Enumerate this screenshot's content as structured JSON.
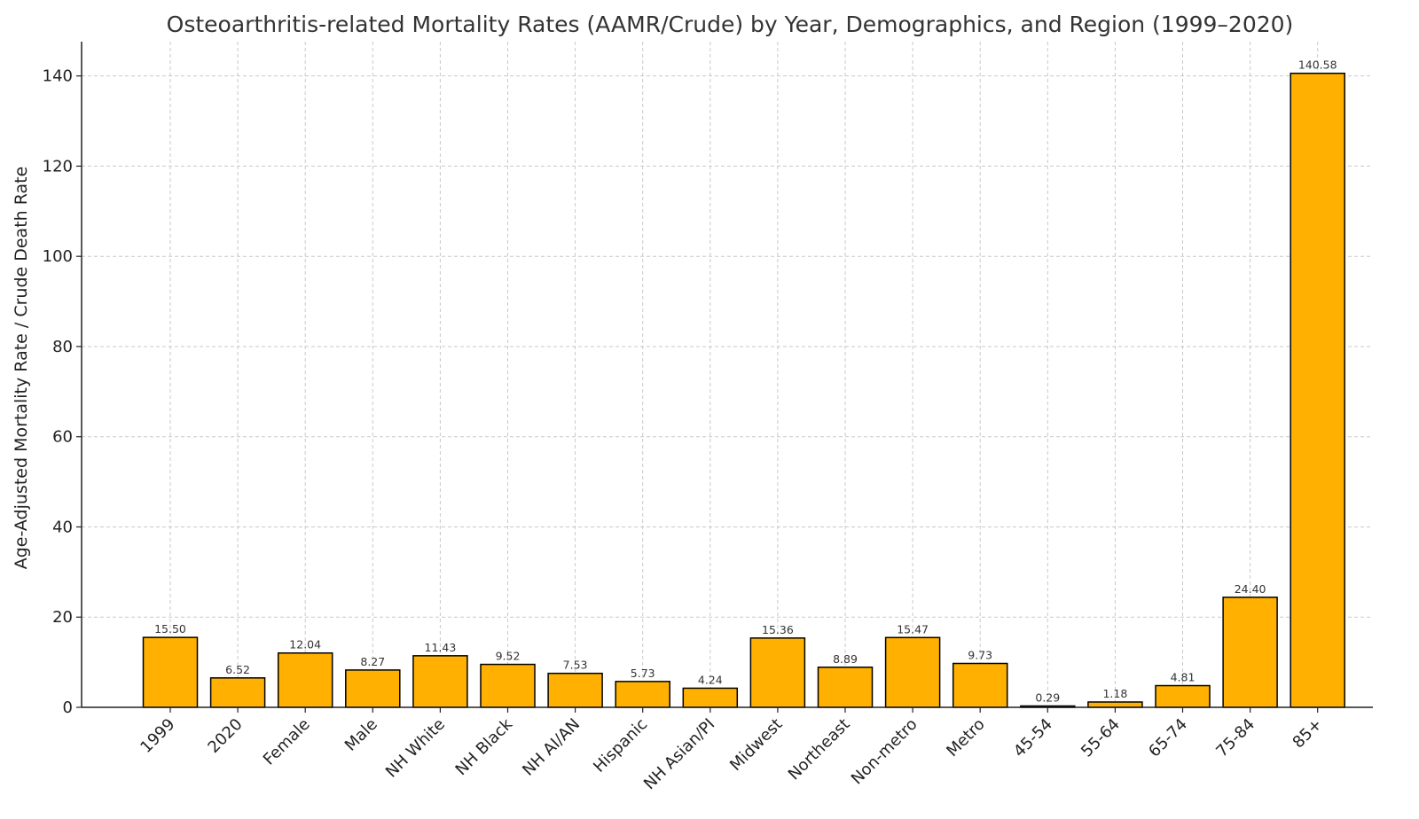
{
  "chart_data": {
    "type": "bar",
    "title": "Osteoarthritis-related Mortality Rates (AAMR/Crude) by Year, Demographics, and Region (1999–2020)",
    "xlabel": "",
    "ylabel": "Age-Adjusted Mortality Rate / Crude Death Rate",
    "categories": [
      "1999",
      "2020",
      "Female",
      "Male",
      "NH White",
      "NH Black",
      "NH AI/AN",
      "Hispanic",
      "NH Asian/PI",
      "Midwest",
      "Northeast",
      "Non-metro",
      "Metro",
      "45-54",
      "55-64",
      "65-74",
      "75-84",
      "85+"
    ],
    "values": [
      15.5,
      6.52,
      12.04,
      8.27,
      11.43,
      9.52,
      7.53,
      5.73,
      4.24,
      15.36,
      8.89,
      15.47,
      9.73,
      0.29,
      1.18,
      4.81,
      24.4,
      140.58
    ],
    "data_labels": [
      "15.50",
      "6.52",
      "12.04",
      "8.27",
      "11.43",
      "9.52",
      "7.53",
      "5.73",
      "4.24",
      "15.36",
      "8.89",
      "15.47",
      "9.73",
      "0.29",
      "1.18",
      "4.81",
      "24.40",
      "140.58"
    ],
    "yticks": [
      0,
      20,
      40,
      60,
      80,
      100,
      120,
      140
    ],
    "ylim": [
      0,
      147.6
    ],
    "grid": true,
    "legend": "none",
    "bar_color": "#FFB000",
    "bar_edge_color": "#000000"
  }
}
